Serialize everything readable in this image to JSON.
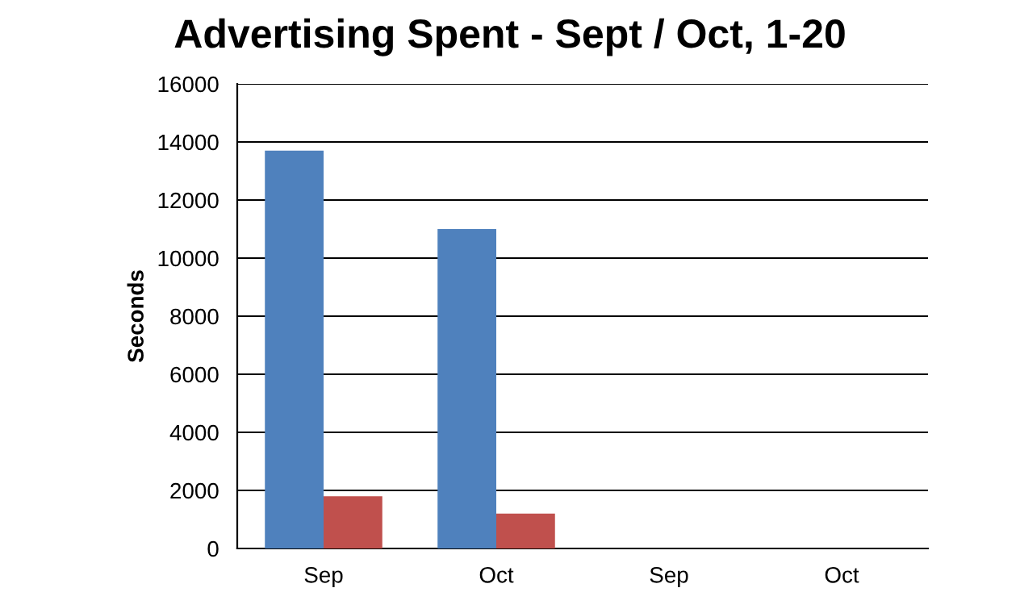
{
  "chart_data": {
    "type": "bar",
    "title": "Advertising Spent - Sept / Oct, 1-20",
    "ylabel": "Seconds",
    "categories": [
      "Sep",
      "Oct",
      "Sep",
      "Oct"
    ],
    "series": [
      {
        "color": "#4f81bd",
        "values": [
          13700,
          11000,
          0,
          0
        ]
      },
      {
        "color": "#c0504d",
        "values": [
          1800,
          1200,
          0,
          0
        ]
      }
    ],
    "ylim": [
      0,
      16000
    ],
    "yticks": [
      0,
      2000,
      4000,
      6000,
      8000,
      10000,
      12000,
      14000,
      16000
    ],
    "grid": "y"
  }
}
